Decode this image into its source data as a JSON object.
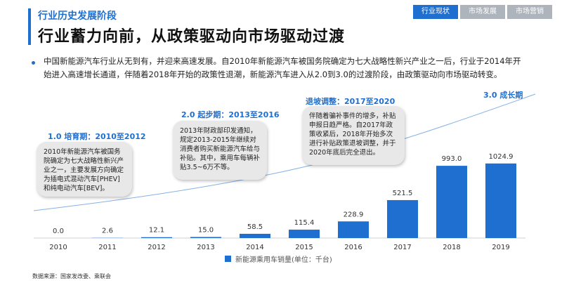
{
  "header": {
    "section_title": "行业历史发展阶段",
    "main_title": "行业蓄力向前，从政策驱动向市场驱动过渡"
  },
  "tabs": [
    {
      "label": "行业现状",
      "active": true
    },
    {
      "label": "市场发展",
      "active": false
    },
    {
      "label": "市场营销",
      "active": false
    }
  ],
  "intro": "中国新能源汽车行业从无到有，并迎来高速发展。自2010年新能源汽车被国务院确定为七大战略性新兴产业之一后，行业于2014年开始进入高速增长通道，伴随着2018年开始的政策性退潮，新能源汽车进入从2.0到3.0的过渡阶段，由政策驱动向市场驱动转变。",
  "phases": [
    {
      "label": "1.0 培育期：2010至2012",
      "text": "2010年新能源汽车被国务院确定为七大战略性新兴产业之一，主要发展方向确定为插电式混动汽车[PHEV]和纯电动汽车[BEV]。"
    },
    {
      "label": "2.0 起步期：2013至2016",
      "text": "2013年财政部印发通知，规定2013-2015年继续对消费者购买新能源汽车给与补贴。其中，乘用车每辆补贴3.5~6万不等。"
    },
    {
      "label": "退坡调整：2017至2020",
      "text": "伴随着骗补事件的增多，补贴申报日趋严格。自2017年政策收紧后，2018年开始多次进行补贴政策退坡调整，并于2020年底后完全退出。"
    },
    {
      "label": "3.0 成长期",
      "text": ""
    }
  ],
  "chart_data": {
    "type": "bar",
    "categories": [
      "2010",
      "2011",
      "2012",
      "2013",
      "2014",
      "2015",
      "2016",
      "2017",
      "2018",
      "2019"
    ],
    "values": [
      0.0,
      2.6,
      12.1,
      15.0,
      58.5,
      115.4,
      228.9,
      521.5,
      993.0,
      1024.9
    ],
    "value_labels": [
      "0.0",
      "2.6",
      "12.1",
      "15.0",
      "58.5",
      "115.4",
      "228.9",
      "521.5",
      "993.0",
      "1024.9"
    ],
    "series": [
      {
        "name": "新能源乘用车销量(单位：千台)",
        "values": [
          0.0,
          2.6,
          12.1,
          15.0,
          58.5,
          115.4,
          228.9,
          521.5,
          993.0,
          1024.9
        ]
      }
    ],
    "ylim": [
      0,
      1100
    ],
    "color": "#1f6fd1",
    "grid": false,
    "legend": "bottom-center"
  },
  "source": "数据来源：国家发改委、乘联会"
}
